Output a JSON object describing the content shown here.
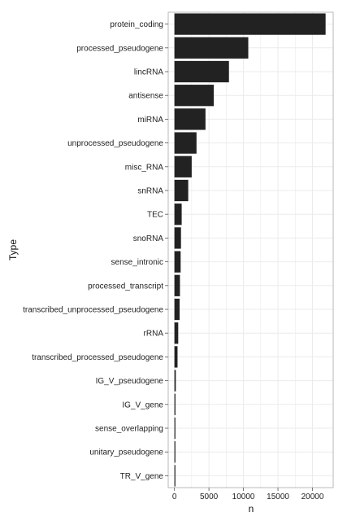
{
  "chart_data": {
    "type": "bar",
    "orientation": "horizontal",
    "title": "",
    "xlabel": "n",
    "ylabel": "Type",
    "categories": [
      "protein_coding",
      "processed_pseudogene",
      "lincRNA",
      "antisense",
      "miRNA",
      "unprocessed_pseudogene",
      "misc_RNA",
      "snRNA",
      "TEC",
      "snoRNA",
      "sense_intronic",
      "processed_transcript",
      "transcribed_unprocessed_pseudogene",
      "rRNA",
      "transcribed_processed_pseudogene",
      "IG_V_pseudogene",
      "IG_V_gene",
      "sense_overlapping",
      "unitary_pseudogene",
      "TR_V_gene"
    ],
    "values": [
      21900,
      10700,
      7900,
      5700,
      4500,
      3200,
      2500,
      2000,
      1050,
      950,
      900,
      800,
      750,
      550,
      450,
      200,
      150,
      100,
      80,
      70
    ],
    "xlim": [
      -900,
      23000
    ],
    "xticks": [
      0,
      5000,
      10000,
      15000,
      20000
    ],
    "xtick_labels": [
      "0",
      "5000",
      "10000",
      "15000",
      "20000"
    ],
    "grid": true,
    "bar_color": "#222222",
    "grid_color": "#ebebeb",
    "panel_border_color": "#a8a8a8"
  }
}
